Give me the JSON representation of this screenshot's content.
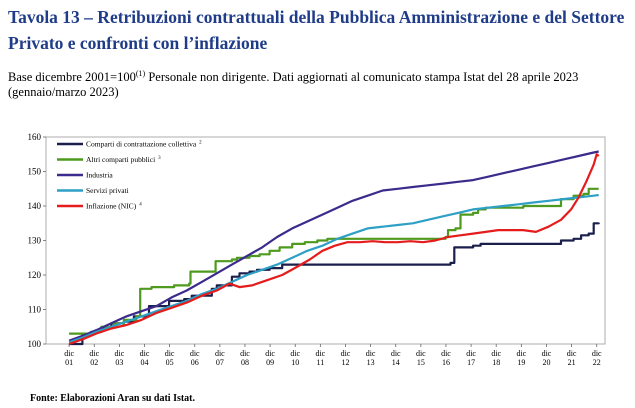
{
  "header": {
    "title": "Tavola 13 – Retribuzioni contrattuali della Pubblica Amministrazione e del Settore Privato e confronti con l’inflazione",
    "subtitle_pre": "Base dicembre 2001=100",
    "subtitle_sup": "(1)",
    "subtitle_post": " Personale non dirigente. Dati aggiornati al comunicato stampa Istat del 28 aprile 2023 (gennaio/marzo 2023)"
  },
  "footer": {
    "source": "Fonte: Elaborazioni Aran su dati Istat."
  },
  "chart_data": {
    "type": "line",
    "title": "",
    "xlabel": "",
    "ylabel": "",
    "xlim": [
      2001,
      2023.25
    ],
    "ylim": [
      100,
      160
    ],
    "yticks": [
      100,
      110,
      120,
      130,
      140,
      150,
      160
    ],
    "xticks": [
      {
        "top": "dic",
        "bottom": "01",
        "x": 2001.92
      },
      {
        "top": "dic",
        "bottom": "02",
        "x": 2002.92
      },
      {
        "top": "dic",
        "bottom": "03",
        "x": 2003.92
      },
      {
        "top": "dic",
        "bottom": "04",
        "x": 2004.92
      },
      {
        "top": "dic",
        "bottom": "05",
        "x": 2005.92
      },
      {
        "top": "dic",
        "bottom": "06",
        "x": 2006.92
      },
      {
        "top": "dic",
        "bottom": "07",
        "x": 2007.92
      },
      {
        "top": "dic",
        "bottom": "08",
        "x": 2008.92
      },
      {
        "top": "dic",
        "bottom": "09",
        "x": 2009.92
      },
      {
        "top": "dic",
        "bottom": "10",
        "x": 2010.92
      },
      {
        "top": "dic",
        "bottom": "11",
        "x": 2011.92
      },
      {
        "top": "dic",
        "bottom": "12",
        "x": 2012.92
      },
      {
        "top": "dic",
        "bottom": "13",
        "x": 2013.92
      },
      {
        "top": "dic",
        "bottom": "14",
        "x": 2014.92
      },
      {
        "top": "dic",
        "bottom": "15",
        "x": 2015.92
      },
      {
        "top": "dic",
        "bottom": "16",
        "x": 2016.92
      },
      {
        "top": "dic",
        "bottom": "17",
        "x": 2017.92
      },
      {
        "top": "dic",
        "bottom": "18",
        "x": 2018.92
      },
      {
        "top": "dic",
        "bottom": "19",
        "x": 2019.92
      },
      {
        "top": "dic",
        "bottom": "20",
        "x": 2020.92
      },
      {
        "top": "dic",
        "bottom": "21",
        "x": 2021.92
      },
      {
        "top": "dic",
        "bottom": "22",
        "x": 2022.92
      }
    ],
    "legend_position": "top-left",
    "series": [
      {
        "name": "Comparti di contrattazione collettiva",
        "sup": "2",
        "color": "#1a1f4b",
        "step": true,
        "points": [
          [
            2001.92,
            100
          ],
          [
            2002.3,
            100
          ],
          [
            2002.45,
            103
          ],
          [
            2002.8,
            103.5
          ],
          [
            2003.2,
            104.5
          ],
          [
            2003.6,
            106
          ],
          [
            2004.1,
            106.5
          ],
          [
            2004.5,
            108
          ],
          [
            2004.95,
            108
          ],
          [
            2005.1,
            111
          ],
          [
            2005.7,
            111
          ],
          [
            2005.9,
            112.5
          ],
          [
            2006.5,
            113
          ],
          [
            2006.8,
            114
          ],
          [
            2007.3,
            114
          ],
          [
            2007.6,
            116
          ],
          [
            2007.8,
            117
          ],
          [
            2008.2,
            117
          ],
          [
            2008.4,
            119.5
          ],
          [
            2008.7,
            120.5
          ],
          [
            2009.1,
            121
          ],
          [
            2009.4,
            121.5
          ],
          [
            2009.9,
            122
          ],
          [
            2010.4,
            123
          ],
          [
            2016.9,
            123
          ],
          [
            2017.1,
            123.5
          ],
          [
            2017.25,
            128
          ],
          [
            2018.0,
            128.5
          ],
          [
            2018.3,
            129
          ],
          [
            2021.0,
            129
          ],
          [
            2021.5,
            130
          ],
          [
            2022.0,
            130.5
          ],
          [
            2022.3,
            131.5
          ],
          [
            2022.6,
            132
          ],
          [
            2022.8,
            135
          ],
          [
            2023.0,
            135.2
          ]
        ]
      },
      {
        "name": "Altri comparti pubblici",
        "sup": "3",
        "color": "#4e9a1e",
        "step": true,
        "points": [
          [
            2001.92,
            103
          ],
          [
            2002.9,
            103.5
          ],
          [
            2003.2,
            105
          ],
          [
            2003.7,
            106
          ],
          [
            2004.1,
            107
          ],
          [
            2004.6,
            108
          ],
          [
            2004.75,
            116
          ],
          [
            2005.1,
            116
          ],
          [
            2005.2,
            116.5
          ],
          [
            2006.1,
            117
          ],
          [
            2006.7,
            117.5
          ],
          [
            2006.75,
            121
          ],
          [
            2007.6,
            121
          ],
          [
            2007.75,
            124
          ],
          [
            2008.4,
            124.5
          ],
          [
            2008.6,
            125
          ],
          [
            2009.1,
            125.5
          ],
          [
            2009.5,
            126
          ],
          [
            2009.9,
            127
          ],
          [
            2010.3,
            128
          ],
          [
            2010.8,
            129
          ],
          [
            2011.3,
            129.5
          ],
          [
            2011.8,
            130
          ],
          [
            2012.2,
            130.5
          ],
          [
            2016.8,
            130.5
          ],
          [
            2016.9,
            131
          ],
          [
            2017.0,
            133
          ],
          [
            2017.3,
            133.5
          ],
          [
            2017.5,
            137.5
          ],
          [
            2018.0,
            138
          ],
          [
            2018.2,
            139
          ],
          [
            2018.5,
            139.5
          ],
          [
            2019.5,
            139.5
          ],
          [
            2020.0,
            140
          ],
          [
            2021.2,
            140
          ],
          [
            2021.5,
            142
          ],
          [
            2022.0,
            143
          ],
          [
            2022.4,
            143.5
          ],
          [
            2022.6,
            145
          ],
          [
            2023.0,
            145
          ]
        ]
      },
      {
        "name": "Industria",
        "sup": "",
        "color": "#3c2a8c",
        "step": false,
        "points": [
          [
            2001.92,
            101
          ],
          [
            2002.5,
            102.5
          ],
          [
            2003.0,
            104
          ],
          [
            2003.6,
            106
          ],
          [
            2004.2,
            108
          ],
          [
            2004.8,
            109.5
          ],
          [
            2005.4,
            111
          ],
          [
            2006.0,
            113.5
          ],
          [
            2006.6,
            115.5
          ],
          [
            2007.2,
            118
          ],
          [
            2007.8,
            120.5
          ],
          [
            2008.4,
            123
          ],
          [
            2009.0,
            125.5
          ],
          [
            2009.6,
            128
          ],
          [
            2010.2,
            131
          ],
          [
            2010.8,
            133.5
          ],
          [
            2011.4,
            135.5
          ],
          [
            2012.0,
            137.5
          ],
          [
            2012.6,
            139.5
          ],
          [
            2013.2,
            141.5
          ],
          [
            2013.8,
            143
          ],
          [
            2014.4,
            144.5
          ],
          [
            2015.0,
            145
          ],
          [
            2015.6,
            145.5
          ],
          [
            2016.2,
            146
          ],
          [
            2016.8,
            146.5
          ],
          [
            2017.4,
            147
          ],
          [
            2018.0,
            147.5
          ],
          [
            2018.6,
            148.5
          ],
          [
            2019.2,
            149.5
          ],
          [
            2019.8,
            150.5
          ],
          [
            2020.4,
            151.5
          ],
          [
            2021.0,
            152.5
          ],
          [
            2021.6,
            153.5
          ],
          [
            2022.2,
            154.5
          ],
          [
            2022.8,
            155.5
          ],
          [
            2023.0,
            155.8
          ]
        ]
      },
      {
        "name": "Servizi privati",
        "sup": "",
        "color": "#2ea0c6",
        "step": false,
        "points": [
          [
            2001.92,
            100.5
          ],
          [
            2002.5,
            102
          ],
          [
            2003.0,
            103.5
          ],
          [
            2003.6,
            105
          ],
          [
            2004.2,
            106.5
          ],
          [
            2004.8,
            108
          ],
          [
            2005.4,
            109.5
          ],
          [
            2006.0,
            111
          ],
          [
            2006.6,
            112.5
          ],
          [
            2007.2,
            114.5
          ],
          [
            2007.8,
            116
          ],
          [
            2008.4,
            118
          ],
          [
            2009.0,
            120
          ],
          [
            2009.6,
            121.5
          ],
          [
            2010.2,
            123
          ],
          [
            2010.8,
            125
          ],
          [
            2011.4,
            127
          ],
          [
            2012.0,
            128.5
          ],
          [
            2012.6,
            130.5
          ],
          [
            2013.2,
            132
          ],
          [
            2013.8,
            133.5
          ],
          [
            2014.4,
            134
          ],
          [
            2015.0,
            134.5
          ],
          [
            2015.6,
            135
          ],
          [
            2016.2,
            136
          ],
          [
            2016.8,
            137
          ],
          [
            2017.4,
            138
          ],
          [
            2018.0,
            139
          ],
          [
            2018.6,
            139.5
          ],
          [
            2019.2,
            140
          ],
          [
            2019.8,
            140.5
          ],
          [
            2020.4,
            141
          ],
          [
            2021.0,
            141.5
          ],
          [
            2021.6,
            142
          ],
          [
            2022.2,
            142.5
          ],
          [
            2022.8,
            143
          ],
          [
            2023.0,
            143.2
          ]
        ]
      },
      {
        "name": "Inflazione (NIC)",
        "sup": "4",
        "color": "#e51c1c",
        "step": false,
        "points": [
          [
            2001.92,
            100
          ],
          [
            2002.5,
            101.5
          ],
          [
            2003.0,
            103
          ],
          [
            2003.6,
            104.5
          ],
          [
            2004.2,
            105.5
          ],
          [
            2004.8,
            107
          ],
          [
            2005.4,
            109
          ],
          [
            2006.0,
            110.5
          ],
          [
            2006.6,
            112
          ],
          [
            2007.2,
            114
          ],
          [
            2007.8,
            115.5
          ],
          [
            2008.3,
            117.5
          ],
          [
            2008.7,
            116.5
          ],
          [
            2009.2,
            117
          ],
          [
            2009.8,
            118.5
          ],
          [
            2010.4,
            120
          ],
          [
            2010.9,
            122
          ],
          [
            2011.5,
            124.5
          ],
          [
            2012.0,
            127
          ],
          [
            2012.5,
            128.5
          ],
          [
            2013.0,
            129.5
          ],
          [
            2013.5,
            129.5
          ],
          [
            2014.0,
            129.8
          ],
          [
            2014.5,
            129.5
          ],
          [
            2015.0,
            129.5
          ],
          [
            2015.5,
            129.8
          ],
          [
            2016.0,
            129.5
          ],
          [
            2016.5,
            130
          ],
          [
            2017.0,
            131
          ],
          [
            2017.5,
            131.5
          ],
          [
            2018.0,
            132
          ],
          [
            2018.5,
            132.5
          ],
          [
            2019.0,
            133
          ],
          [
            2019.5,
            133
          ],
          [
            2020.0,
            133
          ],
          [
            2020.5,
            132.5
          ],
          [
            2021.0,
            134
          ],
          [
            2021.5,
            136
          ],
          [
            2021.9,
            139
          ],
          [
            2022.2,
            142.5
          ],
          [
            2022.5,
            147
          ],
          [
            2022.8,
            152
          ],
          [
            2022.92,
            155
          ],
          [
            2023.0,
            154.5
          ]
        ]
      }
    ]
  }
}
